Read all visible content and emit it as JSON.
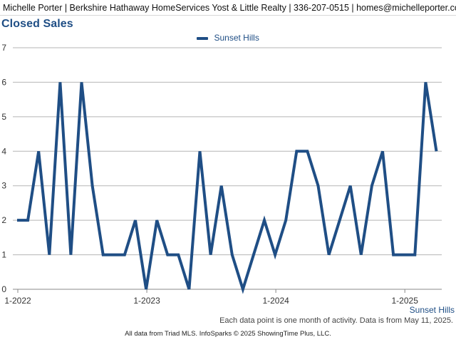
{
  "header": {
    "text": "Michelle Porter | Berkshire Hathaway HomeServices Yost & Little Realty | 336-207-0515 | homes@michelleporter.com"
  },
  "note": "Each data point is one month of activity. Data is from May 11, 2025.",
  "footer": "All data from Triad MLS. InfoSparks © 2025 ShowingTime Plus, LLC.",
  "colors": {
    "series": "#1f4e85",
    "grid": "#b5b5b5",
    "axis": "#888888"
  },
  "chart_data": {
    "type": "line",
    "title": "Closed Sales",
    "xlabel": "",
    "ylabel": "",
    "ylim": [
      0,
      7
    ],
    "yticks": [
      0,
      1,
      2,
      3,
      4,
      5,
      6,
      7
    ],
    "xticks": [
      {
        "label": "1-2022",
        "index": 0
      },
      {
        "label": "1-2023",
        "index": 12
      },
      {
        "label": "1-2024",
        "index": 24
      },
      {
        "label": "1-2025",
        "index": 36
      }
    ],
    "grid": true,
    "legend_position": "top-center",
    "end_label": "Sunset Hills",
    "series": [
      {
        "name": "Sunset Hills",
        "values": [
          2,
          2,
          4,
          1,
          6,
          1,
          6,
          3,
          1,
          1,
          1,
          2,
          0,
          2,
          1,
          1,
          0,
          4,
          1,
          3,
          1,
          0,
          1,
          2,
          1,
          2,
          4,
          4,
          3,
          1,
          2,
          3,
          1,
          3,
          4,
          1,
          1,
          1,
          6,
          4
        ]
      }
    ]
  }
}
